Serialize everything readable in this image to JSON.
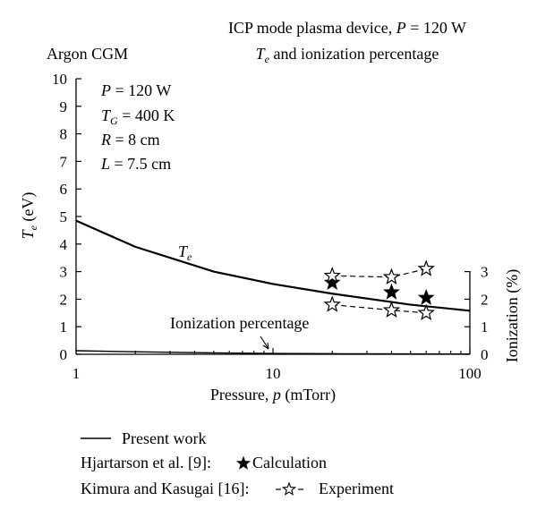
{
  "chart_data": {
    "type": "line",
    "title_line1": "ICP mode plasma device, P = 120 W",
    "title_line2": "Te and ionization percentage",
    "subtitle": "Argon CGM",
    "params": [
      "P = 120 W",
      "TG = 400 K",
      "R = 8 cm",
      "L = 7.5 cm"
    ],
    "xlabel": "Pressure, p (mTorr)",
    "ylabel": "Te (eV)",
    "y2label": "Ionization (%)",
    "xscale": "log",
    "xlim": [
      1,
      100
    ],
    "ylim": [
      0,
      10
    ],
    "y2lim": [
      0,
      3
    ],
    "x_ticks": [
      1,
      10,
      100
    ],
    "y_ticks": [
      0,
      1,
      2,
      3,
      4,
      5,
      6,
      7,
      8,
      9,
      10
    ],
    "y2_ticks": [
      0,
      1,
      2,
      3
    ],
    "grid": false,
    "annotations": {
      "te_label": "Te",
      "ionization_label": "Ionization percentage"
    },
    "series": [
      {
        "name": "Te",
        "axis": "left",
        "style": "solid",
        "x": [
          1,
          2,
          5,
          10,
          20,
          50,
          100
        ],
        "y": [
          4.85,
          3.9,
          3.0,
          2.55,
          2.2,
          1.8,
          1.58
        ]
      },
      {
        "name": "Ionization percentage",
        "axis": "right",
        "style": "solid",
        "x": [
          1,
          2,
          5,
          10,
          20,
          50,
          100
        ],
        "y": [
          0.13,
          0.09,
          0.05,
          0.03,
          0.02,
          0.012,
          0.008
        ]
      },
      {
        "name": "Calculation",
        "axis": "left",
        "style": "filled-star",
        "x": [
          20,
          40,
          60
        ],
        "y": [
          2.6,
          2.25,
          2.05
        ]
      },
      {
        "name": "Experiment Te",
        "axis": "left",
        "style": "open-star-dashed",
        "x": [
          20,
          40,
          60
        ],
        "y": [
          2.85,
          2.8,
          3.1
        ]
      },
      {
        "name": "Experiment ionization",
        "axis": "left",
        "style": "open-star-dashed",
        "x": [
          20,
          40,
          60
        ],
        "y": [
          1.8,
          1.6,
          1.5
        ]
      }
    ],
    "legend": [
      {
        "symbol": "line",
        "label": "Present work"
      },
      {
        "symbol": "filled-star",
        "prefix": "Hjartarson et al. [9]:",
        "label": "Calculation"
      },
      {
        "symbol": "open-star-dashed",
        "prefix": "Kimura and Kasugai [16]:",
        "label": "Experiment"
      }
    ]
  }
}
